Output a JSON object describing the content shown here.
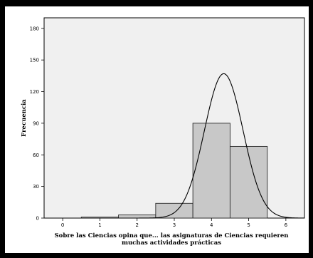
{
  "chart_data": {
    "type": "bar",
    "subtype": "histogram-with-normal-curve",
    "title": "",
    "xlabel_lines": [
      "Sobre las Ciencias opina que... las asignaturas de Ciencias requieren",
      "muchas actividades prácticas"
    ],
    "ylabel": "Frecuencia",
    "xlim": [
      -0.5,
      6.5
    ],
    "ylim": [
      0,
      190
    ],
    "x_ticks": [
      0,
      1,
      2,
      3,
      4,
      5,
      6
    ],
    "y_ticks": [
      0,
      30,
      60,
      90,
      120,
      150,
      180
    ],
    "bins": [
      {
        "start": 0.5,
        "end": 1.5,
        "value": 1
      },
      {
        "start": 1.5,
        "end": 2.5,
        "value": 3
      },
      {
        "start": 2.5,
        "end": 3.5,
        "value": 14
      },
      {
        "start": 3.5,
        "end": 4.5,
        "value": 90
      },
      {
        "start": 4.5,
        "end": 5.5,
        "value": 68
      }
    ],
    "normal_curve": {
      "mean": 4.33,
      "peak": 137,
      "sd": 0.52
    },
    "grid": false,
    "legend": "none",
    "colors": {
      "bar_fill": "#c8c8c8",
      "bar_stroke": "#2a2a2a",
      "curve": "#000000",
      "plot_background": "#f0f0f0",
      "frame": "#000000"
    }
  }
}
